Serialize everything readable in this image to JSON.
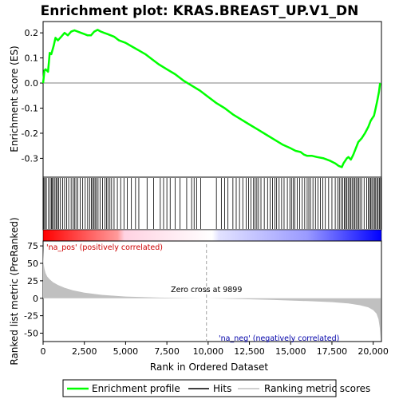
{
  "title": "Enrichment plot: KRAS.BREAST_UP.V1_DN",
  "colors": {
    "es_line": "#00ff00",
    "hits": "#000000",
    "metric_fill": "#c0c0c0",
    "zero_cross": "#a0a0a0",
    "pos_label": "#cc0000",
    "neg_label": "#0000aa"
  },
  "chart_data": {
    "type": "line",
    "xlabel": "Rank in Ordered Dataset",
    "x_ticks": [
      "0",
      "2,500",
      "5,000",
      "7,500",
      "10,000",
      "12,500",
      "15,000",
      "17,500",
      "20,000"
    ],
    "x_tick_values": [
      0,
      2500,
      5000,
      7500,
      10000,
      12500,
      15000,
      17500,
      20000
    ],
    "xlim": [
      0,
      20500
    ],
    "es_panel": {
      "ylabel": "Enrichment score (ES)",
      "ylim": [
        -0.375,
        0.245
      ],
      "y_ticks": [
        "0.2",
        "0.1",
        "0.0",
        "-0.1",
        "-0.2",
        "-0.3"
      ],
      "y_tick_values": [
        0.2,
        0.1,
        0.0,
        -0.1,
        -0.2,
        -0.3
      ],
      "series": [
        {
          "name": "Enrichment profile",
          "x": [
            0,
            80,
            150,
            300,
            400,
            500,
            650,
            750,
            900,
            1100,
            1300,
            1500,
            1700,
            1900,
            2100,
            2300,
            2500,
            2700,
            2900,
            3100,
            3300,
            3500,
            3700,
            3900,
            4100,
            4300,
            4600,
            5000,
            5400,
            5800,
            6200,
            6600,
            7000,
            7500,
            8000,
            8500,
            9000,
            9500,
            10000,
            10500,
            11000,
            11500,
            12000,
            12500,
            13000,
            13500,
            14000,
            14500,
            15000,
            15300,
            15600,
            15800,
            16000,
            16300,
            16600,
            17000,
            17400,
            17700,
            17900,
            18100,
            18200,
            18400,
            18500,
            18650,
            18800,
            18950,
            19100,
            19300,
            19500,
            19700,
            19850,
            19950,
            20050,
            20150,
            20250,
            20350,
            20420
          ],
          "values": [
            0.0,
            0.05,
            0.055,
            0.045,
            0.12,
            0.115,
            0.15,
            0.18,
            0.17,
            0.185,
            0.2,
            0.19,
            0.205,
            0.21,
            0.205,
            0.2,
            0.195,
            0.19,
            0.19,
            0.205,
            0.212,
            0.205,
            0.2,
            0.195,
            0.19,
            0.185,
            0.17,
            0.16,
            0.145,
            0.13,
            0.115,
            0.095,
            0.075,
            0.055,
            0.035,
            0.01,
            -0.01,
            -0.03,
            -0.055,
            -0.08,
            -0.1,
            -0.125,
            -0.145,
            -0.165,
            -0.185,
            -0.205,
            -0.225,
            -0.245,
            -0.26,
            -0.27,
            -0.275,
            -0.285,
            -0.29,
            -0.29,
            -0.295,
            -0.3,
            -0.31,
            -0.32,
            -0.33,
            -0.335,
            -0.32,
            -0.3,
            -0.295,
            -0.305,
            -0.285,
            -0.26,
            -0.235,
            -0.22,
            -0.2,
            -0.175,
            -0.15,
            -0.14,
            -0.13,
            -0.1,
            -0.07,
            -0.035,
            0.0
          ]
        }
      ]
    },
    "hits_panel": {
      "name": "Hits",
      "hit_ranks": [
        50,
        120,
        200,
        330,
        430,
        510,
        560,
        640,
        720,
        800,
        870,
        950,
        1050,
        1180,
        1300,
        1420,
        1550,
        1700,
        1820,
        1900,
        1990,
        2100,
        2250,
        2400,
        2550,
        2700,
        2820,
        2920,
        3000,
        3080,
        3150,
        3230,
        3330,
        3450,
        3600,
        3750,
        3850,
        3930,
        4050,
        4150,
        4300,
        4500,
        4700,
        4900,
        5100,
        5350,
        5600,
        5800,
        6300,
        6700,
        7100,
        7300,
        7500,
        7700,
        8000,
        8300,
        8700,
        9000,
        9150,
        9300,
        9550,
        10500,
        10800,
        11000,
        11200,
        11500,
        11700,
        11900,
        12100,
        12300,
        12450,
        12600,
        12750,
        12850,
        12950,
        13050,
        13200,
        13400,
        13600,
        13750,
        13900,
        14050,
        14150,
        14300,
        14450,
        14600,
        14800,
        14950,
        15050,
        15150,
        15250,
        15400,
        15550,
        15700,
        15850,
        16000,
        16100,
        16200,
        16350,
        16500,
        16650,
        16800,
        16950,
        17100,
        17300,
        17500,
        17700,
        17850,
        17950,
        18050,
        18150,
        18250,
        18320,
        18400,
        18480,
        18560,
        18640,
        18720,
        18800,
        18880,
        18960,
        19040,
        19120,
        19200,
        19300,
        19450,
        19600,
        19700,
        19780,
        19850,
        19920,
        20000,
        20080,
        20150,
        20230,
        20300,
        20380,
        20450
      ]
    },
    "metric_panel": {
      "name": "Ranking metric scores",
      "ylabel": "Ranked list metric (PreRanked)",
      "ylim": [
        -62,
        82
      ],
      "y_ticks": [
        "75",
        "50",
        "25",
        "0",
        "-25",
        "-50"
      ],
      "y_tick_values": [
        75,
        50,
        25,
        0,
        -25,
        -50
      ],
      "x": [
        0,
        30,
        80,
        150,
        250,
        400,
        600,
        900,
        1300,
        1800,
        2500,
        3500,
        5000,
        7000,
        9899,
        12000,
        14000,
        16000,
        17500,
        18500,
        19200,
        19700,
        20000,
        20200,
        20320,
        20400,
        20450
      ],
      "values": [
        72,
        50,
        42,
        36,
        31,
        27,
        23,
        19,
        15,
        11.5,
        8,
        5,
        2.5,
        1,
        0,
        -1.2,
        -2.5,
        -4,
        -5.5,
        -7.5,
        -10,
        -13,
        -17,
        -22,
        -30,
        -42,
        -58
      ],
      "zero_cross_rank": 9899,
      "zero_cross_label": "Zero cross at 9899",
      "pos_label": "'na_pos' (positively correlated)",
      "neg_label": "'na_neg' (negatively correlated)"
    },
    "legend": {
      "placement": "bottom",
      "items": [
        "Enrichment profile",
        "Hits",
        "Ranking metric scores"
      ]
    }
  }
}
